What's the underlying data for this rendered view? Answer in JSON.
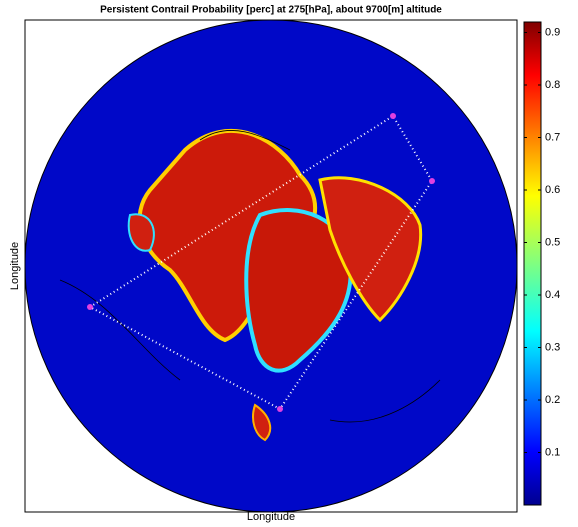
{
  "chart_data": {
    "type": "map",
    "title": "Persistent Contrail Probability [perc] at 275[hPa], about 9700[m] altitude",
    "xlabel": "Longitude",
    "ylabel": "Longitude",
    "colorbar": {
      "lim": [
        0,
        0.92
      ],
      "ticks": [
        0.1,
        0.2,
        0.3,
        0.4,
        0.5,
        0.6,
        0.7,
        0.8,
        0.9
      ]
    }
  }
}
